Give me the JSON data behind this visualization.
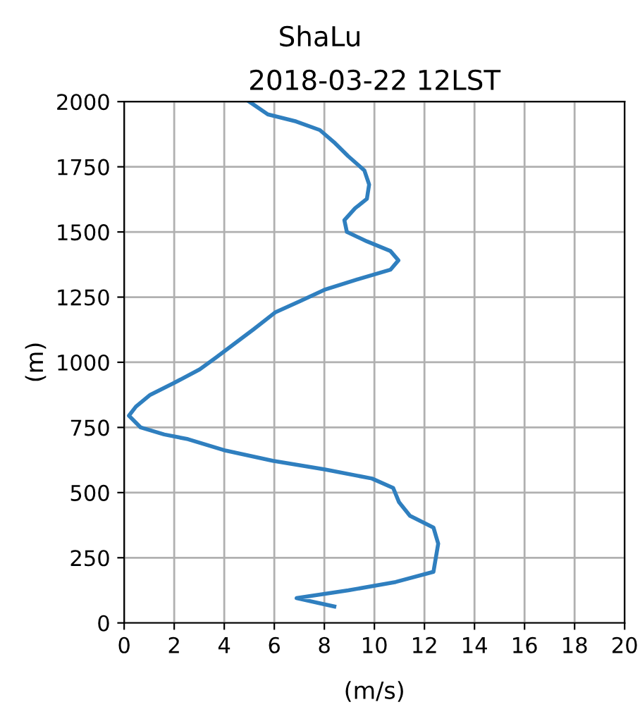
{
  "chart_data": {
    "type": "line",
    "title": "ShaLu",
    "subtitle": "2018-03-22 12LST",
    "xlabel": "(m/s)",
    "ylabel": "(m)",
    "series": [
      {
        "color": "#2f7fbf",
        "x": [
          8.4,
          6.89,
          8.96,
          10.85,
          12.36,
          12.55,
          12.36,
          11.42,
          10.98,
          10.75,
          9.9,
          8.02,
          5.94,
          4.06,
          2.55,
          1.6,
          0.66,
          0.19,
          0.47,
          1.04,
          1.98,
          3.02,
          3.67,
          4.43,
          5.18,
          6.03,
          7.06,
          8.0,
          9.32,
          10.64,
          10.96,
          10.64,
          9.7,
          8.9,
          8.8,
          9.23,
          9.7,
          9.79,
          9.6,
          8.95,
          8.38,
          7.82,
          6.87,
          5.74,
          5.0
        ],
        "values": [
          63,
          95,
          125,
          157,
          196,
          304,
          366,
          411,
          464,
          518,
          554,
          589,
          622,
          661,
          705,
          723,
          750,
          795,
          830,
          875,
          920,
          973,
          1018,
          1073,
          1127,
          1191,
          1236,
          1278,
          1318,
          1355,
          1391,
          1427,
          1464,
          1500,
          1545,
          1591,
          1627,
          1682,
          1736,
          1791,
          1845,
          1891,
          1924,
          1951,
          2000
        ]
      }
    ],
    "xlim": [
      0,
      20
    ],
    "xticks": [
      0,
      2,
      4,
      6,
      8,
      10,
      12,
      14,
      16,
      18,
      20
    ],
    "ylim": [
      0,
      2000
    ],
    "yticks": [
      0,
      250,
      500,
      750,
      1000,
      1250,
      1500,
      1750,
      2000
    ],
    "grid": true,
    "marker": "none",
    "line_style": "solid"
  }
}
